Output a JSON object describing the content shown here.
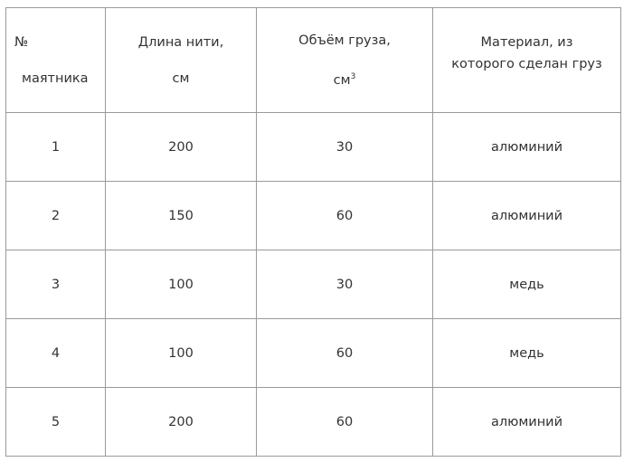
{
  "headers": {
    "col1_line1": "№",
    "col1_line2": "маятника",
    "col2_line1": "Длина нити,",
    "col2_line2": "см",
    "col3_line1": "Объём груза,",
    "col3_line2": "см",
    "col3_sup": "3",
    "col4_line1": "Материал, из",
    "col4_line2": "которого сделан груз"
  },
  "rows": [
    [
      "1",
      "200",
      "30",
      "алюминий"
    ],
    [
      "2",
      "150",
      "60",
      "алюминий"
    ],
    [
      "3",
      "100",
      "30",
      "медь"
    ],
    [
      "4",
      "100",
      "60",
      "медь"
    ],
    [
      "5",
      "200",
      "60",
      "алюминий"
    ]
  ]
}
